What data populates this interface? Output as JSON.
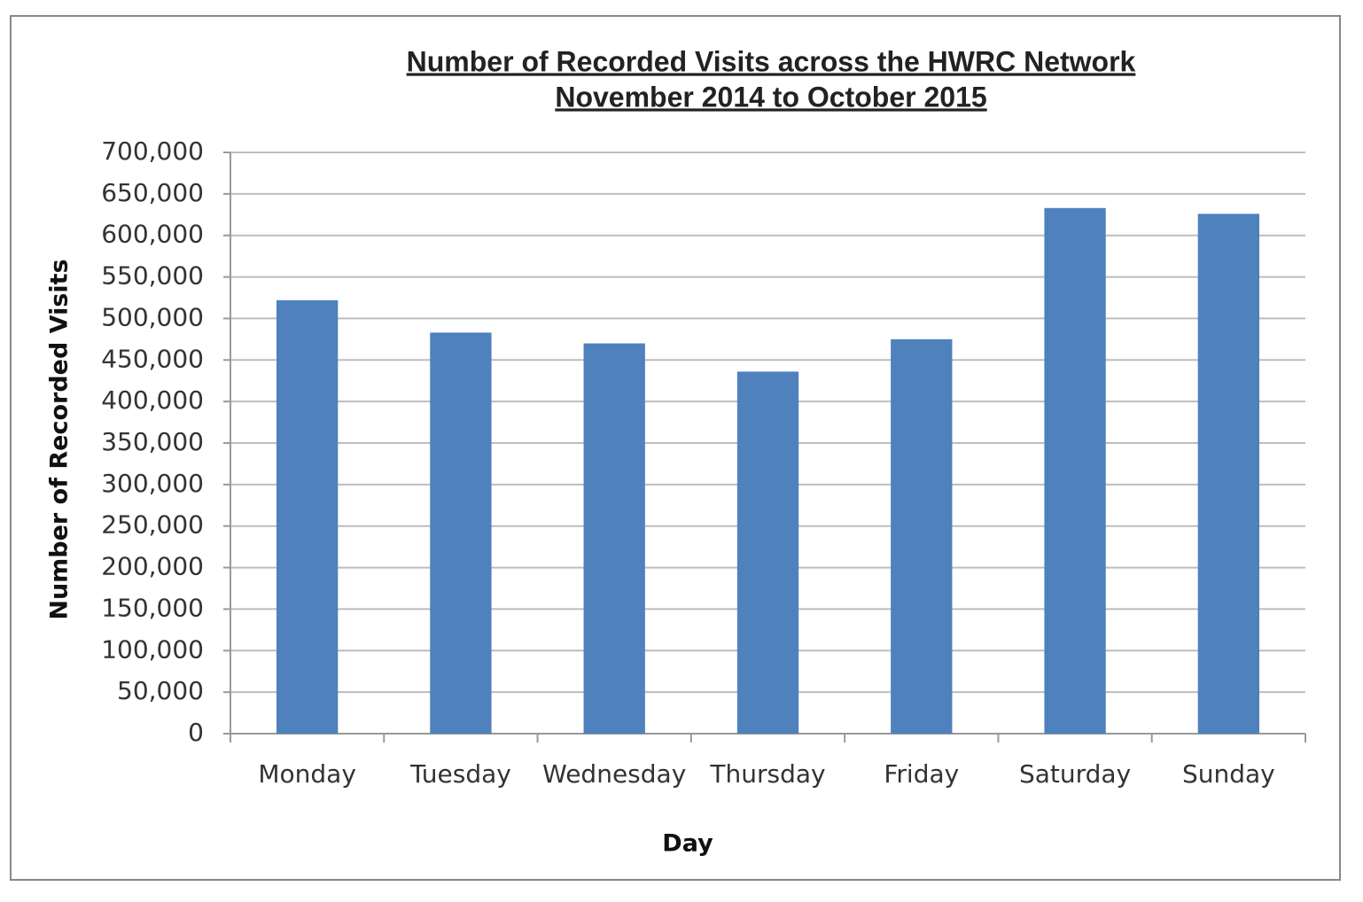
{
  "chart_data": {
    "type": "bar",
    "title": "Number of Recorded Visits across the HWRC Network",
    "subtitle": "November 2014 to October 2015",
    "x_label": "Day",
    "y_label": "Number of Recorded Visits",
    "categories": [
      "Monday",
      "Tuesday",
      "Wednesday",
      "Thursday",
      "Friday",
      "Saturday",
      "Sunday"
    ],
    "values": [
      522000,
      483000,
      470000,
      436000,
      475000,
      633000,
      626000
    ],
    "color": "#4f81bd",
    "ylim": [
      0,
      700000
    ],
    "yticks": [
      0,
      {
        "value": 50000,
        "label": "50,000"
      },
      {
        "value": 100000,
        "label": "100,000"
      },
      {
        "value": 150000,
        "label": "150,000"
      },
      {
        "value": 200000,
        "label": "200,000"
      },
      {
        "value": 250000,
        "label": "250,000"
      },
      {
        "value": 300000,
        "label": "300,000"
      },
      {
        "value": 350000,
        "label": "350,000"
      },
      {
        "value": 400000,
        "label": "400,000"
      },
      {
        "value": 450000,
        "label": "450,000"
      },
      {
        "value": 500000,
        "label": "500,000"
      },
      {
        "value": 550000,
        "label": "550,000"
      },
      {
        "value": 600000,
        "label": "600,000"
      },
      {
        "value": 650000,
        "label": "650,000"
      },
      {
        "value": 700000,
        "label": "700,000"
      }
    ],
    "grid": true
  }
}
